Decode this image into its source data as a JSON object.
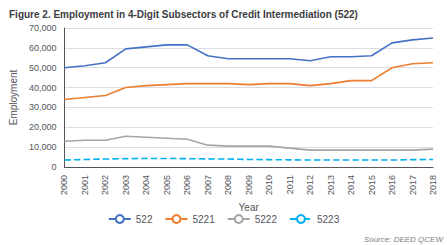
{
  "chart_data": {
    "type": "line",
    "title": "Figure 2. Employment in 4-Digit Subsectors of Credit Intermediation (522)",
    "xlabel": "Year",
    "ylabel": "Employment",
    "annotations": [
      "Source: DEED QCEW"
    ],
    "x": [
      2000,
      2001,
      2002,
      2003,
      2004,
      2005,
      2006,
      2007,
      2008,
      2009,
      2010,
      2011,
      2012,
      2013,
      2014,
      2015,
      2016,
      2017,
      2018
    ],
    "series": [
      {
        "name": "522",
        "color": "#4472C4",
        "line_style": "solid",
        "values": [
          50000,
          51000,
          52500,
          59500,
          60500,
          61500,
          61500,
          56000,
          54500,
          54500,
          54500,
          54500,
          53500,
          55500,
          55500,
          56000,
          62500,
          64000,
          65000
        ]
      },
      {
        "name": "5221",
        "color": "#ED7D31",
        "line_style": "solid",
        "values": [
          34000,
          35000,
          36000,
          40000,
          41000,
          41500,
          42000,
          42000,
          42000,
          41500,
          42000,
          42000,
          41000,
          42000,
          43500,
          43500,
          50000,
          52000,
          52500
        ]
      },
      {
        "name": "5222",
        "color": "#A5A5A5",
        "line_style": "solid",
        "values": [
          13000,
          13500,
          13500,
          15500,
          15000,
          14500,
          14000,
          11000,
          10500,
          10500,
          10500,
          9500,
          8500,
          8500,
          8500,
          8500,
          8500,
          8500,
          9000
        ]
      },
      {
        "name": "5223",
        "color": "#00B0F0",
        "line_style": "dashed",
        "values": [
          3500,
          3800,
          4000,
          4200,
          4300,
          4300,
          4200,
          4100,
          4000,
          3800,
          3700,
          3600,
          3500,
          3500,
          3500,
          3500,
          3500,
          3700,
          3800
        ]
      }
    ],
    "xlim": [
      2000,
      2018
    ],
    "xticks": [
      2000,
      2001,
      2002,
      2003,
      2004,
      2005,
      2006,
      2007,
      2008,
      2009,
      2010,
      2011,
      2012,
      2013,
      2014,
      2015,
      2016,
      2017,
      2018
    ],
    "ylim": [
      0,
      70000
    ],
    "yticks": [
      0,
      {
        "value": 10000,
        "label": "10,000"
      },
      {
        "value": 20000,
        "label": "20,000"
      },
      {
        "value": 30000,
        "label": "30,000"
      },
      {
        "value": 40000,
        "label": "40,000"
      },
      {
        "value": 50000,
        "label": "50,000"
      },
      {
        "value": 60000,
        "label": "60,000"
      },
      {
        "value": 70000,
        "label": "70,000"
      }
    ],
    "grid": true,
    "legend": "bottom"
  }
}
